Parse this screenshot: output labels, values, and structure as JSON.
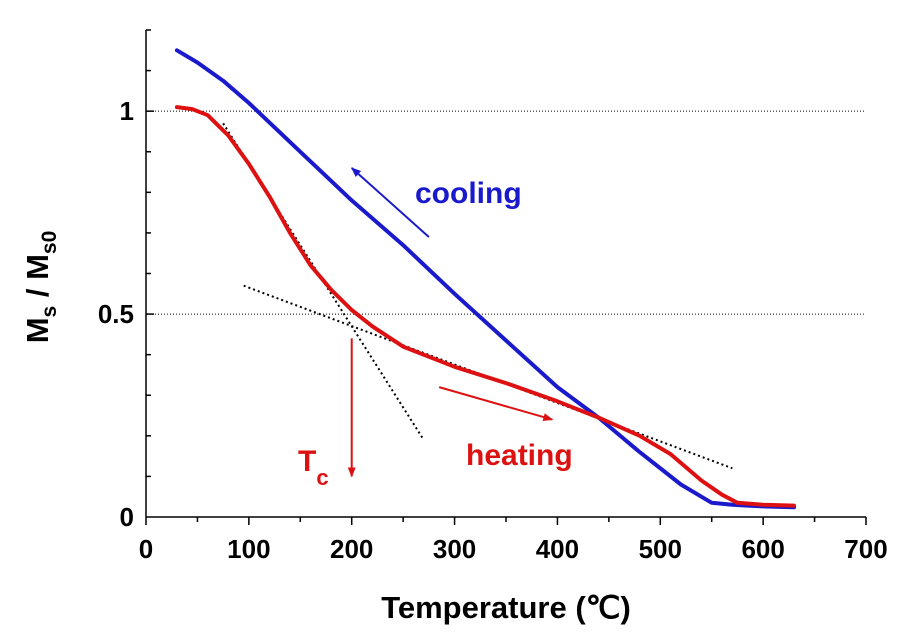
{
  "chart_data": {
    "type": "line",
    "title": "",
    "xlabel": "Temperature (℃)",
    "ylabel": {
      "main_a": "M",
      "sub_a": "s",
      "slash": " / ",
      "main_b": "M",
      "sub_b": "s0"
    },
    "xlim": [
      0,
      700
    ],
    "ylim": [
      0,
      1.2
    ],
    "xticks": [
      0,
      100,
      200,
      300,
      400,
      500,
      600,
      700
    ],
    "xtick_labels": [
      "0",
      "100",
      "200",
      "300",
      "400",
      "500",
      "600",
      "700"
    ],
    "yticks": [
      0,
      0.5,
      1
    ],
    "ytick_labels": [
      "0",
      "0.5",
      "1"
    ],
    "gridlines_y": [
      0.5,
      1
    ],
    "series": [
      {
        "name": "cooling",
        "color": "#1a1acc",
        "x": [
          30,
          50,
          75,
          100,
          125,
          150,
          175,
          200,
          250,
          300,
          350,
          400,
          440,
          480,
          520,
          550,
          570,
          585,
          600,
          630
        ],
        "y": [
          1.15,
          1.12,
          1.075,
          1.02,
          0.96,
          0.9,
          0.84,
          0.78,
          0.67,
          0.55,
          0.435,
          0.32,
          0.245,
          0.16,
          0.08,
          0.035,
          0.03,
          0.028,
          0.026,
          0.024
        ]
      },
      {
        "name": "heating",
        "color": "#dd1111",
        "x": [
          30,
          45,
          60,
          80,
          100,
          120,
          140,
          160,
          180,
          200,
          220,
          250,
          300,
          350,
          400,
          440,
          480,
          510,
          540,
          560,
          575,
          600,
          630
        ],
        "y": [
          1.01,
          1.005,
          0.99,
          0.94,
          0.87,
          0.79,
          0.7,
          0.62,
          0.56,
          0.51,
          0.47,
          0.42,
          0.37,
          0.33,
          0.285,
          0.245,
          0.2,
          0.155,
          0.09,
          0.055,
          0.035,
          0.03,
          0.028
        ]
      }
    ],
    "tangent_lines": [
      {
        "x": [
          75,
          270
        ],
        "y": [
          0.97,
          0.19
        ]
      },
      {
        "x": [
          95,
          570
        ],
        "y": [
          0.57,
          0.12
        ]
      }
    ],
    "annotations": {
      "cooling_label": "cooling",
      "heating_label": "heating",
      "tc_main": "T",
      "tc_sub": "c",
      "tc_x": 200,
      "cooling_arrow": {
        "from": [
          275,
          0.69
        ],
        "to": [
          200,
          0.86
        ]
      },
      "heating_arrow": {
        "from": [
          285,
          0.32
        ],
        "to": [
          395,
          0.24
        ]
      },
      "tc_arrow": {
        "from": [
          200,
          0.44
        ],
        "to": [
          200,
          0.1
        ]
      }
    },
    "colors": {
      "cooling": "#1a1acc",
      "heating": "#dd1111",
      "axis": "#000000",
      "tangent": "#000000"
    }
  }
}
